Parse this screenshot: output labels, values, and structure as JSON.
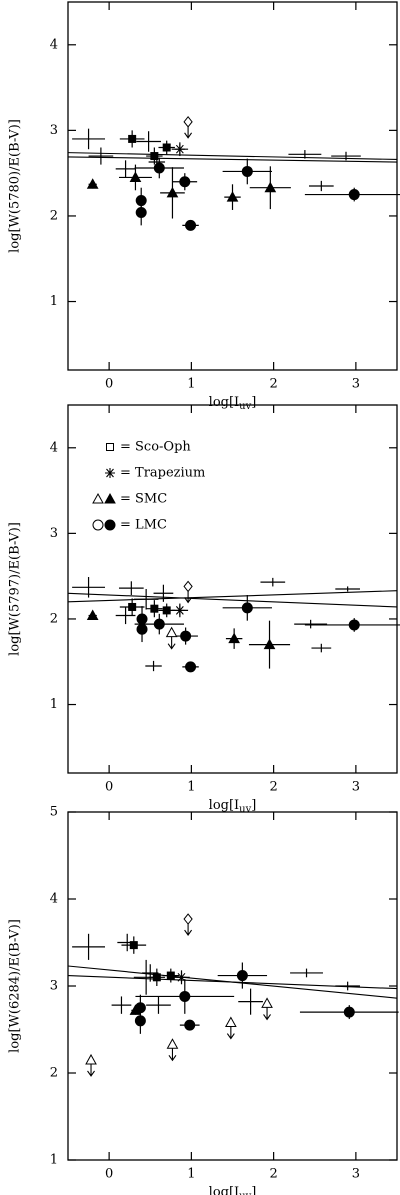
{
  "chart_data": [
    {
      "type": "errorbar",
      "ylabel": "log[W(5780)/E(B-V)]",
      "xlabel": [
        "log[I",
        "uv",
        "]"
      ],
      "xlim": [
        -0.5,
        3.5
      ],
      "ylim": [
        0.2,
        4.5
      ],
      "xticks": [
        0,
        1,
        2,
        3
      ],
      "yticks": [
        1,
        2,
        3,
        4
      ],
      "fits": [
        {
          "x": [
            -0.5,
            3.5
          ],
          "y": [
            2.74,
            2.66
          ]
        },
        {
          "x": [
            -0.5,
            3.5
          ],
          "y": [
            2.69,
            2.63
          ]
        }
      ],
      "series": [
        {
          "marker": "cross",
          "x": [
            -0.25,
            -0.1,
            0.2,
            0.48,
            0.58,
            2.38,
            2.58,
            2.88
          ],
          "y": [
            2.9,
            2.7,
            2.55,
            2.87,
            2.63,
            2.72,
            2.35,
            2.7
          ],
          "xerr": [
            0.2,
            0.15,
            0.12,
            0.15,
            0.1,
            0.2,
            0.15,
            0.18
          ],
          "yerr": [
            0.12,
            0.1,
            0.1,
            0.12,
            0.1,
            0.05,
            0.06,
            0.05
          ]
        },
        {
          "marker": "square",
          "x": [
            0.28,
            0.55,
            0.7
          ],
          "y": [
            2.9,
            2.7,
            2.8
          ],
          "xerr": [
            0.15,
            0.1,
            0.1
          ],
          "yerr": [
            0.1,
            0.1,
            0.08
          ]
        },
        {
          "marker": "asterisk",
          "x": [
            0.86
          ],
          "y": [
            2.78
          ],
          "xerr": [
            0.1
          ],
          "yerr": [
            0.08
          ]
        },
        {
          "marker": "triangle",
          "x": [
            -0.2,
            0.32,
            0.77,
            1.5,
            1.96
          ],
          "y": [
            2.37,
            2.45,
            2.27,
            2.22,
            2.33
          ],
          "xerr": [
            0.05,
            0.2,
            0.15,
            0.1,
            0.25
          ],
          "yerr": [
            0.05,
            0.15,
            0.3,
            0.15,
            0.25
          ]
        },
        {
          "marker": "circle",
          "x": [
            0.39,
            0.39,
            0.61,
            0.92,
            0.99,
            1.68,
            2.98
          ],
          "y": [
            2.18,
            2.04,
            2.56,
            2.4,
            1.89,
            2.52,
            2.25
          ],
          "xerr": [
            0.05,
            0.05,
            0.3,
            0.15,
            0.1,
            0.3,
            0.6
          ],
          "yerr": [
            0.15,
            0.15,
            0.12,
            0.1,
            0.03,
            0.15,
            0.08
          ]
        },
        {
          "marker": "diamond",
          "upper_limit": true,
          "x": [
            0.96
          ],
          "y": [
            3.1
          ]
        }
      ]
    },
    {
      "type": "errorbar",
      "ylabel": "log[W(5797)/E(B-V)]",
      "xlabel": [
        "log[I",
        "uv",
        "]"
      ],
      "xlim": [
        -0.5,
        3.5
      ],
      "ylim": [
        0.2,
        4.5
      ],
      "xticks": [
        0,
        1,
        2,
        3
      ],
      "yticks": [
        1,
        2,
        3,
        4
      ],
      "legend": "upper left",
      "fits": [
        {
          "x": [
            -0.5,
            3.5
          ],
          "y": [
            2.2,
            2.33
          ]
        },
        {
          "x": [
            -0.5,
            3.5
          ],
          "y": [
            2.3,
            2.14
          ]
        }
      ],
      "series": [
        {
          "marker": "cross",
          "x": [
            -0.25,
            0.27,
            0.2,
            0.45,
            0.54,
            0.66,
            1.99,
            2.45,
            2.58,
            2.9
          ],
          "y": [
            2.37,
            2.36,
            2.04,
            2.23,
            1.45,
            2.3,
            2.43,
            1.94,
            1.66,
            2.35
          ],
          "xerr": [
            0.2,
            0.15,
            0.12,
            0.15,
            0.1,
            0.12,
            0.15,
            0.2,
            0.12,
            0.15
          ],
          "yerr": [
            0.12,
            0.08,
            0.1,
            0.12,
            0.06,
            0.1,
            0.05,
            0.05,
            0.05,
            0.03
          ]
        },
        {
          "name": "Sco-Oph",
          "marker": "square",
          "x": [
            0.28,
            0.55,
            0.7
          ],
          "y": [
            2.14,
            2.12,
            2.1
          ],
          "xerr": [
            0.15,
            0.1,
            0.1
          ],
          "yerr": [
            0.1,
            0.1,
            0.08
          ]
        },
        {
          "name": "Trapezium",
          "marker": "asterisk",
          "x": [
            0.86
          ],
          "y": [
            2.1
          ],
          "xerr": [
            0.1
          ],
          "yerr": [
            0.08
          ]
        },
        {
          "name": "SMC",
          "marker": "triangle",
          "x": [
            -0.2,
            1.52,
            1.95
          ],
          "y": [
            2.04,
            1.77,
            1.7
          ],
          "xerr": [
            0.05,
            0.1,
            0.25
          ],
          "yerr": [
            0.05,
            0.12,
            0.28
          ]
        },
        {
          "name": "LMC",
          "marker": "circle",
          "x": [
            0.4,
            0.4,
            0.61,
            0.93,
            0.99,
            1.68,
            2.98
          ],
          "y": [
            2.0,
            1.88,
            1.94,
            1.8,
            1.44,
            2.13,
            1.93
          ],
          "xerr": [
            0.05,
            0.05,
            0.3,
            0.15,
            0.1,
            0.3,
            0.6
          ],
          "yerr": [
            0.15,
            0.15,
            0.12,
            0.1,
            0.03,
            0.15,
            0.08
          ]
        },
        {
          "marker": "triangle",
          "upper_limit": true,
          "x": [
            0.76
          ],
          "y": [
            1.84
          ]
        },
        {
          "marker": "diamond",
          "upper_limit": true,
          "x": [
            0.96
          ],
          "y": [
            2.38
          ]
        }
      ]
    },
    {
      "type": "errorbar",
      "ylabel": "log[W(6284)/E(B-V)]",
      "xlabel": [
        "log[I",
        "uv",
        "]"
      ],
      "xlim": [
        -0.5,
        3.5
      ],
      "ylim": [
        1,
        5
      ],
      "xticks": [
        0,
        1,
        2,
        3
      ],
      "yticks": [
        1,
        2,
        3,
        4,
        5
      ],
      "fits": [
        {
          "x": [
            -0.5,
            3.5
          ],
          "y": [
            3.23,
            2.86
          ]
        },
        {
          "x": [
            -0.5,
            3.5
          ],
          "y": [
            3.12,
            2.97
          ]
        }
      ],
      "series": [
        {
          "marker": "cross",
          "x": [
            -0.25,
            0.22,
            0.15,
            0.45,
            0.5,
            0.6,
            1.72,
            2.4,
            2.9
          ],
          "y": [
            3.45,
            3.5,
            2.78,
            3.1,
            3.15,
            2.78,
            2.82,
            3.15,
            3.0
          ],
          "xerr": [
            0.2,
            0.12,
            0.12,
            0.15,
            0.1,
            0.15,
            0.15,
            0.2,
            0.15
          ],
          "yerr": [
            0.15,
            0.1,
            0.1,
            0.2,
            0.1,
            0.1,
            0.15,
            0.05,
            0.05
          ]
        },
        {
          "marker": "square",
          "x": [
            0.3,
            0.58,
            0.75
          ],
          "y": [
            3.47,
            3.1,
            3.12
          ],
          "xerr": [
            0.15,
            0.1,
            0.1
          ],
          "yerr": [
            0.1,
            0.1,
            0.08
          ]
        },
        {
          "marker": "asterisk",
          "x": [
            0.88
          ],
          "y": [
            3.1
          ],
          "xerr": [
            0.1
          ],
          "yerr": [
            0.08
          ]
        },
        {
          "marker": "triangle",
          "x": [
            0.32
          ],
          "y": [
            2.72
          ],
          "xerr": [
            0.05
          ],
          "yerr": [
            0.05
          ]
        },
        {
          "marker": "circle",
          "x": [
            0.38,
            0.38,
            0.92,
            0.98,
            1.62,
            2.92
          ],
          "y": [
            2.75,
            2.6,
            2.88,
            2.55,
            3.12,
            2.7
          ],
          "xerr": [
            0.05,
            0.05,
            0.6,
            0.12,
            0.3,
            0.6
          ],
          "yerr": [
            0.15,
            0.15,
            0.2,
            0.03,
            0.15,
            0.08
          ]
        },
        {
          "marker": "triangle",
          "upper_limit": true,
          "x": [
            -0.22,
            0.77,
            1.48,
            1.92
          ],
          "y": [
            2.15,
            2.33,
            2.58,
            2.8
          ]
        },
        {
          "marker": "diamond",
          "upper_limit": true,
          "x": [
            0.96
          ],
          "y": [
            3.77
          ]
        }
      ]
    }
  ]
}
